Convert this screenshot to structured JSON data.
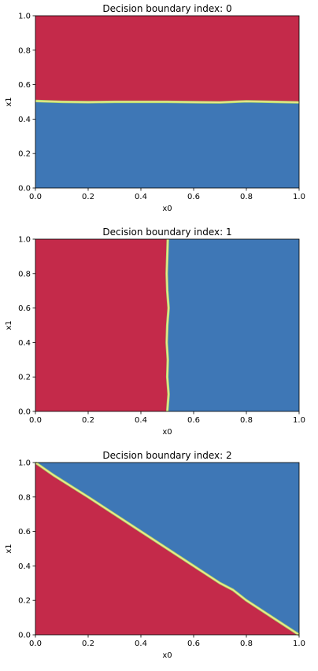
{
  "chart_data": [
    {
      "type": "heatmap",
      "title": "Decision boundary index: 0",
      "xlabel": "x0",
      "ylabel": "x1",
      "xlim": [
        0,
        1
      ],
      "ylim": [
        0,
        1
      ],
      "xticks": [
        "0.0",
        "0.2",
        "0.4",
        "0.6",
        "0.8",
        "1.0"
      ],
      "yticks": [
        "0.0",
        "0.2",
        "0.4",
        "0.6",
        "0.8",
        "1.0"
      ],
      "grid": false,
      "regions": [
        {
          "class": "upper",
          "color": "#c42a4a"
        },
        {
          "class": "lower",
          "color": "#3e77b6"
        }
      ],
      "boundary_color": "#f0e68c",
      "boundary": {
        "x": [
          0,
          0.1,
          0.2,
          0.3,
          0.4,
          0.5,
          0.6,
          0.7,
          0.75,
          0.8,
          0.9,
          1.0
        ],
        "y": [
          0.505,
          0.5,
          0.498,
          0.5,
          0.5,
          0.5,
          0.498,
          0.497,
          0.5,
          0.503,
          0.5,
          0.497
        ]
      }
    },
    {
      "type": "heatmap",
      "title": "Decision boundary index: 1",
      "xlabel": "x0",
      "ylabel": "x1",
      "xlim": [
        0,
        1
      ],
      "ylim": [
        0,
        1
      ],
      "xticks": [
        "0.0",
        "0.2",
        "0.4",
        "0.6",
        "0.8",
        "1.0"
      ],
      "yticks": [
        "0.0",
        "0.2",
        "0.4",
        "0.6",
        "0.8",
        "1.0"
      ],
      "grid": false,
      "regions": [
        {
          "class": "left",
          "color": "#c42a4a"
        },
        {
          "class": "right",
          "color": "#3e77b6"
        }
      ],
      "boundary_color": "#f0e68c",
      "boundary": {
        "x": [
          0.5,
          0.505,
          0.5,
          0.502,
          0.498,
          0.5,
          0.505,
          0.5,
          0.498,
          0.502
        ],
        "y": [
          0.0,
          0.1,
          0.2,
          0.3,
          0.4,
          0.5,
          0.6,
          0.7,
          0.8,
          1.0
        ]
      }
    },
    {
      "type": "heatmap",
      "title": "Decision boundary index: 2",
      "xlabel": "x0",
      "ylabel": "x1",
      "xlim": [
        0,
        1
      ],
      "ylim": [
        0,
        1
      ],
      "xticks": [
        "0.0",
        "0.2",
        "0.4",
        "0.6",
        "0.8",
        "1.0"
      ],
      "yticks": [
        "0.0",
        "0.2",
        "0.4",
        "0.6",
        "0.8",
        "1.0"
      ],
      "grid": false,
      "regions": [
        {
          "class": "below-diagonal",
          "color": "#c42a4a"
        },
        {
          "class": "above-diagonal",
          "color": "#3e77b6"
        }
      ],
      "boundary_color": "#f0e68c",
      "boundary": {
        "x": [
          0.0,
          0.07,
          0.2,
          0.4,
          0.6,
          0.7,
          0.75,
          0.8,
          0.9,
          1.0
        ],
        "y": [
          1.0,
          0.925,
          0.8,
          0.6,
          0.4,
          0.3,
          0.26,
          0.2,
          0.1,
          0.0
        ]
      }
    }
  ]
}
